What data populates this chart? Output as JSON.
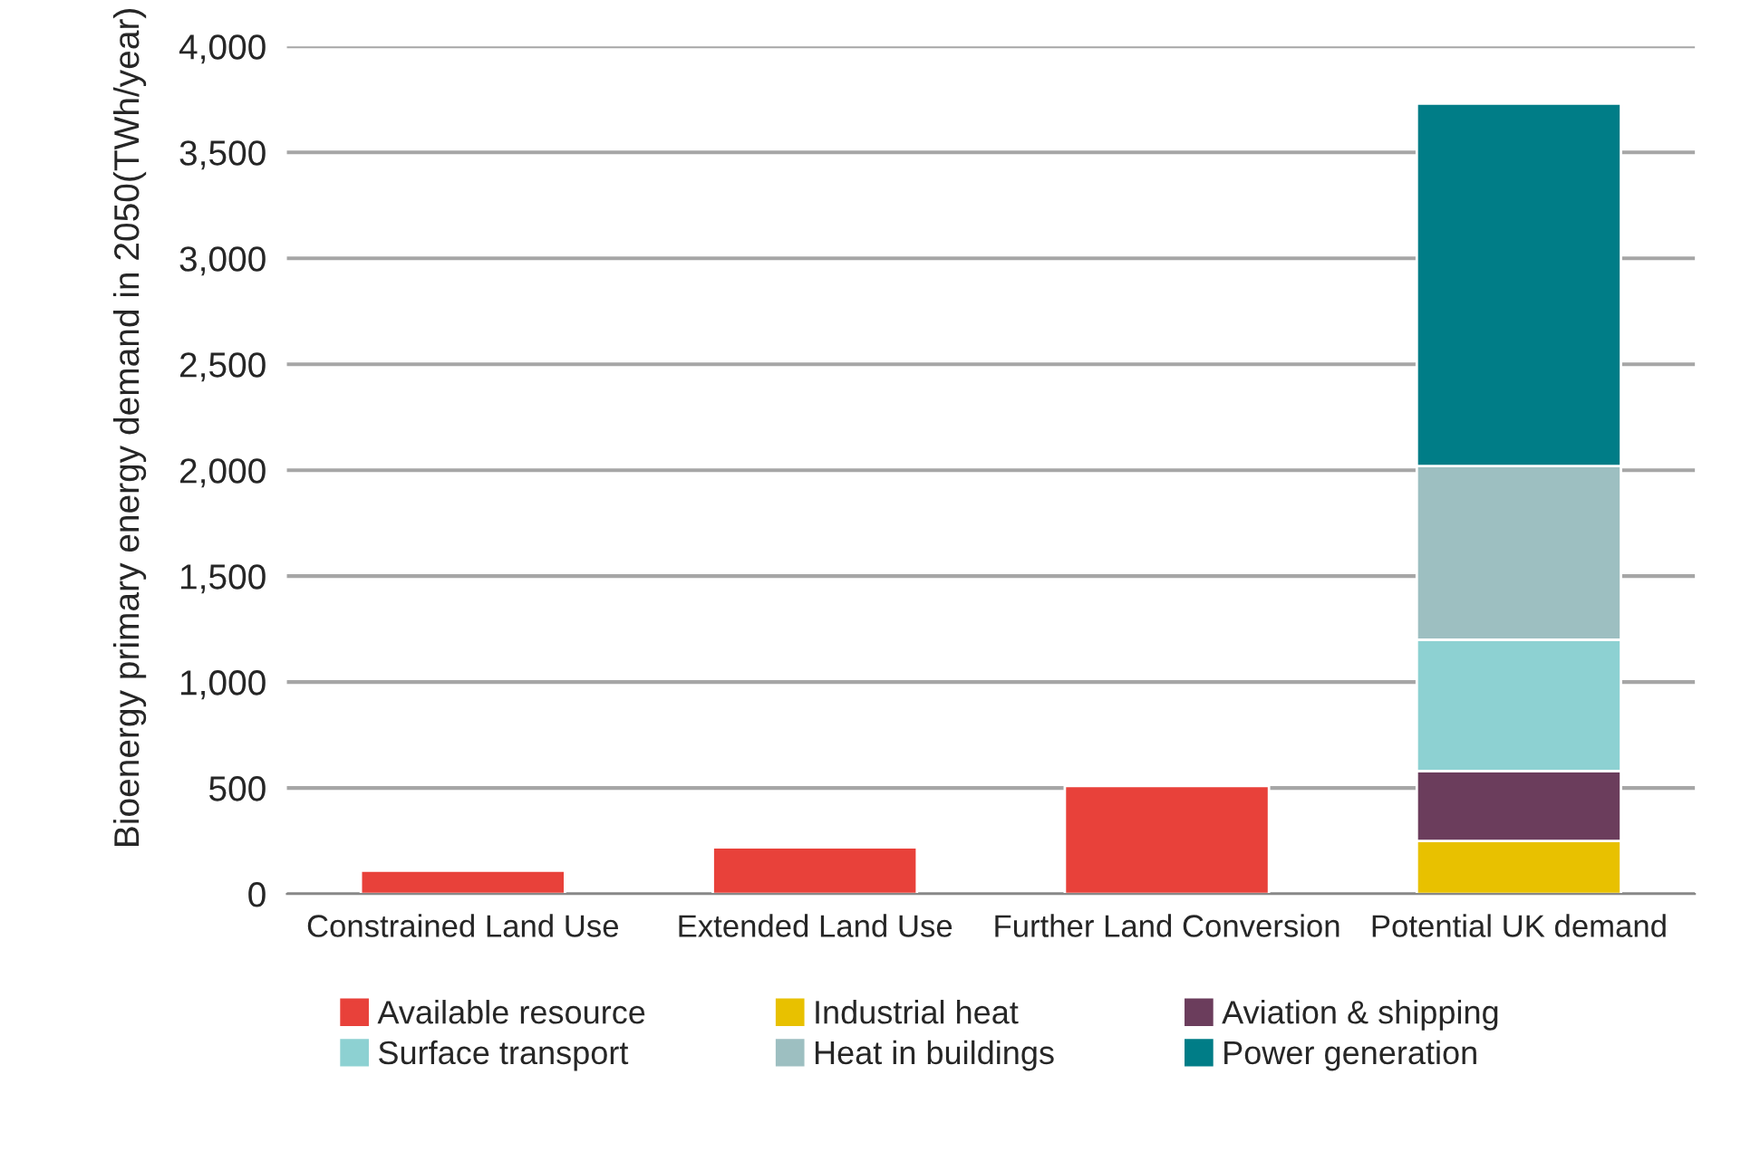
{
  "chart_data": {
    "type": "bar",
    "stacked": true,
    "ylabel": "Bioenergy primary energy demand in 2050(TWh/year)",
    "categories": [
      "Constrained Land Use",
      "Extended Land Use",
      "Further Land Conversion",
      "Potential UK demand"
    ],
    "series": [
      {
        "name": "Available resource",
        "color": "#e8413a",
        "values": [
          110,
          220,
          510,
          null
        ]
      },
      {
        "name": "Industrial heat",
        "color": "#e8c100",
        "values": [
          null,
          null,
          null,
          250
        ]
      },
      {
        "name": "Aviation & shipping",
        "color": "#6b3d5c",
        "values": [
          null,
          null,
          null,
          330
        ]
      },
      {
        "name": "Surface transport",
        "color": "#8dd1d2",
        "values": [
          null,
          null,
          null,
          620
        ]
      },
      {
        "name": "Heat in buildings",
        "color": "#9dbfc1",
        "values": [
          null,
          null,
          null,
          820
        ]
      },
      {
        "name": "Power generation",
        "color": "#007d87",
        "values": [
          null,
          null,
          null,
          1710
        ]
      }
    ],
    "ylim": [
      0,
      4000
    ],
    "yticks": [
      {
        "value": 0,
        "label": "0"
      },
      {
        "value": 500,
        "label": "500"
      },
      {
        "value": 1000,
        "label": "1,000"
      },
      {
        "value": 1500,
        "label": "1,500"
      },
      {
        "value": 2000,
        "label": "2,000"
      },
      {
        "value": 2500,
        "label": "2,500"
      },
      {
        "value": 3000,
        "label": "3,000"
      },
      {
        "value": 3500,
        "label": "3,500"
      },
      {
        "value": 4000,
        "label": "4,000"
      }
    ],
    "grid": "y",
    "legend": "bottom"
  }
}
